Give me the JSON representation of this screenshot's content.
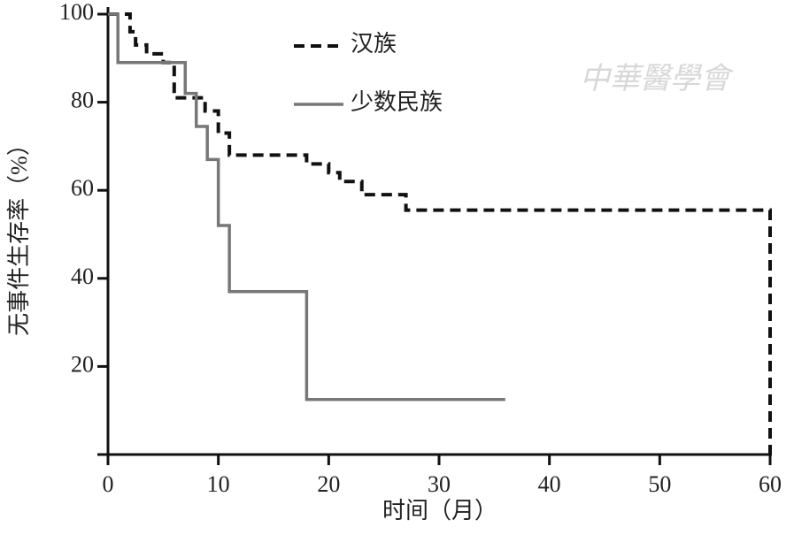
{
  "chart_data": {
    "type": "step",
    "xlabel": "时间（月）",
    "ylabel": "无事件生存率（%）",
    "watermark": "中華醫學會",
    "xlim": [
      0,
      60
    ],
    "xticks": [
      0,
      10,
      20,
      30,
      40,
      50,
      60
    ],
    "ylim": [
      0,
      100
    ],
    "yticks": [
      20,
      40,
      60,
      80,
      100
    ],
    "series": [
      {
        "name": "汉族",
        "color": "#111111",
        "dash": true,
        "x": [
          0,
          2,
          2.5,
          3.5,
          5,
          6,
          8.8,
          10,
          11,
          18,
          20,
          21,
          23,
          27,
          60
        ],
        "values": [
          100,
          96,
          93,
          91,
          89,
          81,
          78,
          73,
          68,
          66,
          64,
          62,
          59,
          55.5,
          0
        ]
      },
      {
        "name": "少数民族",
        "color": "#777777",
        "dash": false,
        "x": [
          0,
          0.9,
          7,
          8,
          9,
          10,
          11,
          18,
          36
        ],
        "values": [
          100,
          89,
          82,
          74.5,
          67,
          52,
          37,
          12.5,
          12.5
        ]
      }
    ]
  }
}
